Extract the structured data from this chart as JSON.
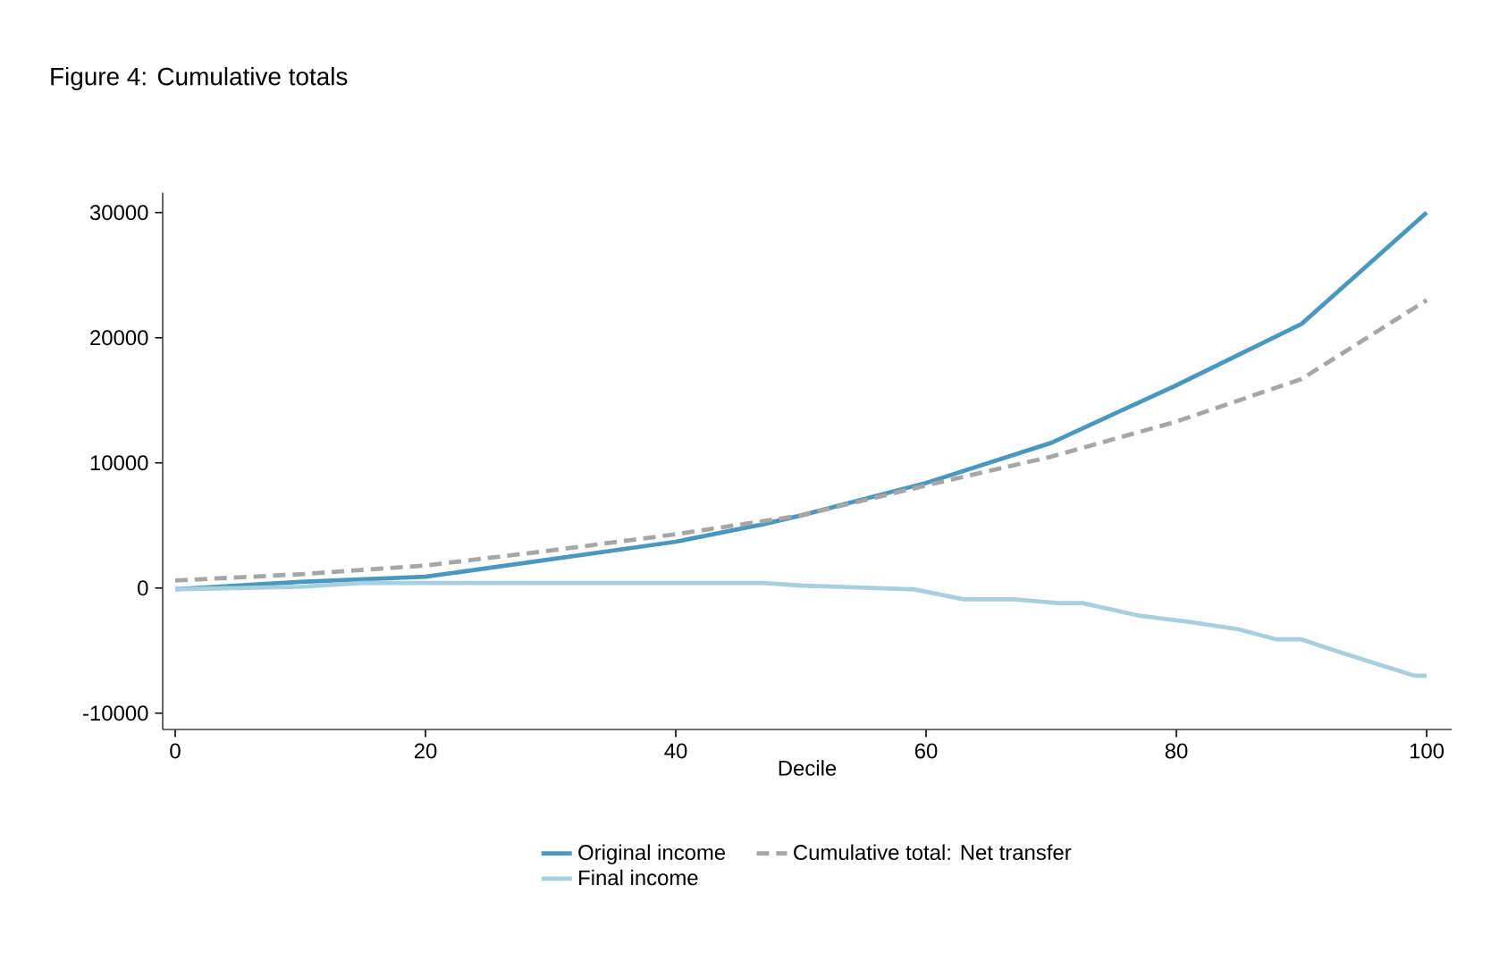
{
  "chart_data": {
    "type": "line",
    "title": "Figure 4: Cumulative totals",
    "xlabel": "Decile",
    "xlim": [
      -1,
      102
    ],
    "ylim": [
      -11300,
      31600
    ],
    "xticks": [
      0,
      20,
      40,
      60,
      80,
      100
    ],
    "yticks": [
      -10000,
      0,
      10000,
      20000,
      30000
    ],
    "grid": false,
    "legend": "bottom",
    "marker": "none",
    "series": [
      {
        "name": "Original income",
        "color": "#4a98bf",
        "line_style": "solid",
        "x": [
          0,
          10,
          20,
          30,
          40,
          47,
          50,
          60,
          70,
          80,
          90,
          100
        ],
        "values": [
          -100,
          500,
          900,
          2300,
          3700,
          5100,
          5800,
          8400,
          11600,
          16200,
          21100,
          30000
        ]
      },
      {
        "name": "Cumulative total: Net transfer",
        "color": "#a6a6a6",
        "line_style": "dashed",
        "x": [
          0,
          10,
          20,
          30,
          40,
          50,
          60,
          70,
          80,
          90,
          100
        ],
        "values": [
          600,
          1100,
          1800,
          3000,
          4300,
          5800,
          8200,
          10500,
          13300,
          16700,
          23000
        ]
      },
      {
        "name": "Final income",
        "color": "#a8cfe0",
        "line_style": "solid",
        "x": [
          0,
          10,
          15,
          47,
          50,
          53,
          59,
          63,
          67,
          70.5,
          72.5,
          77,
          81,
          85,
          88,
          90,
          93,
          99,
          100
        ],
        "values": [
          -100,
          100,
          400,
          400,
          200,
          100,
          -100,
          -900,
          -900,
          -1200,
          -1200,
          -2200,
          -2700,
          -3300,
          -4100,
          -4100,
          -5100,
          -7000,
          -7000
        ]
      }
    ]
  }
}
